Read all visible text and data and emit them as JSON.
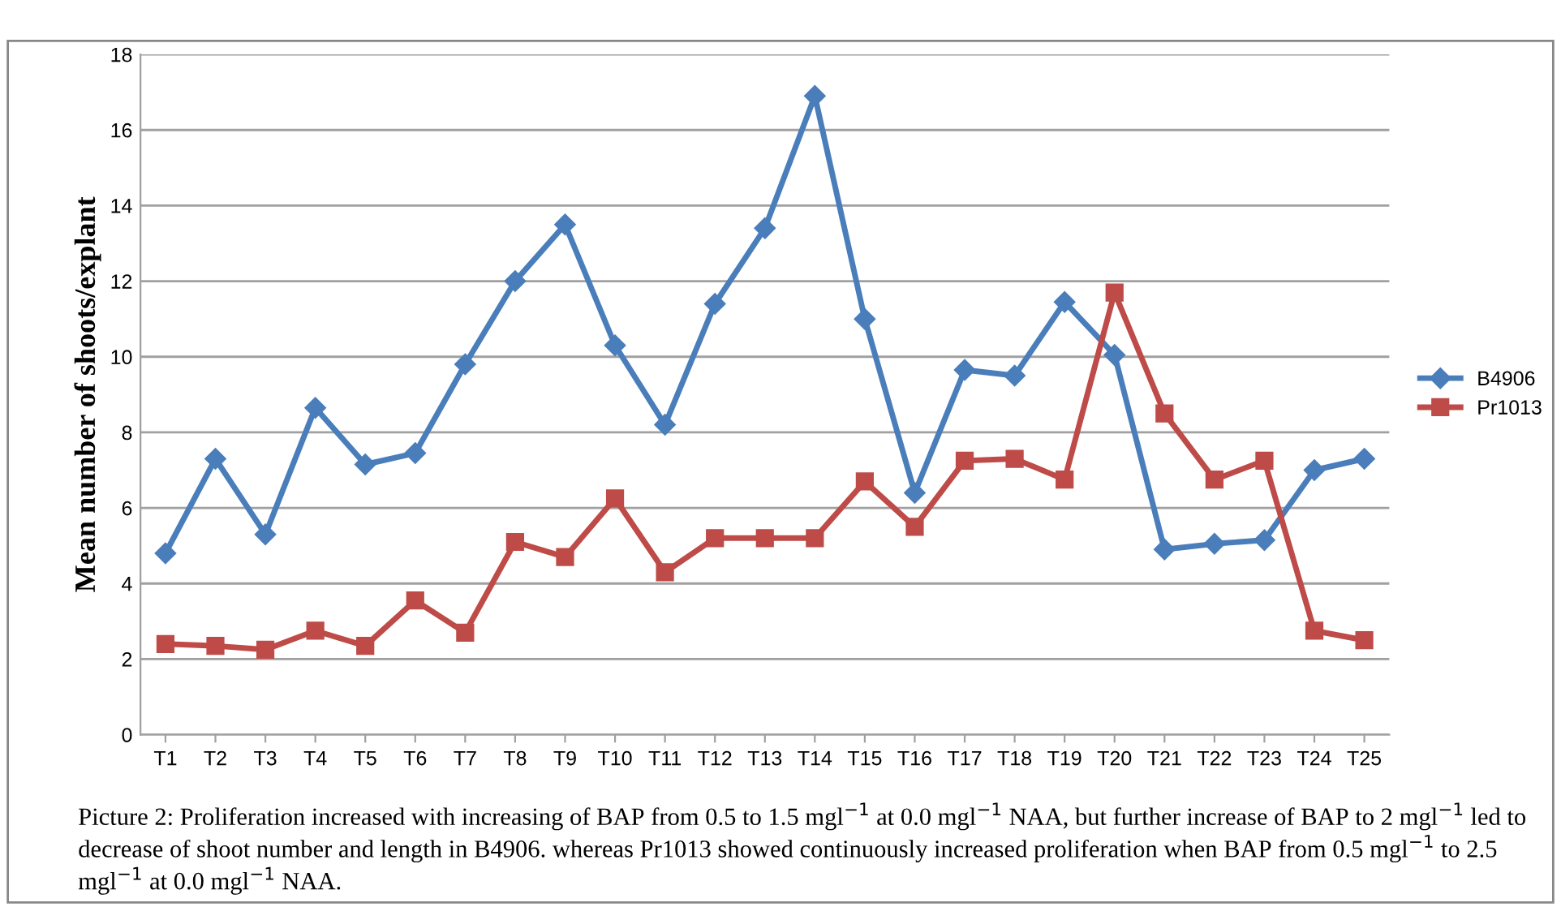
{
  "chart_data": {
    "type": "line",
    "ylabel": "Mean number of shoots/explant",
    "categories": [
      "T1",
      "T2",
      "T3",
      "T4",
      "T5",
      "T6",
      "T7",
      "T8",
      "T9",
      "T10",
      "T11",
      "T12",
      "T13",
      "T14",
      "T15",
      "T16",
      "T17",
      "T18",
      "T19",
      "T20",
      "T21",
      "T22",
      "T23",
      "T24",
      "T25"
    ],
    "series": [
      {
        "name": "B4906",
        "color": "#4a7ebb",
        "marker": "diamond",
        "values": [
          4.8,
          7.3,
          5.3,
          8.65,
          7.15,
          7.45,
          9.8,
          12.0,
          13.5,
          10.3,
          8.2,
          11.4,
          13.4,
          16.9,
          11.0,
          6.4,
          9.65,
          9.5,
          11.45,
          10.05,
          4.9,
          5.05,
          5.15,
          7.0,
          7.3
        ]
      },
      {
        "name": "Pr1013",
        "color": "#be4b48",
        "marker": "square",
        "values": [
          2.4,
          2.35,
          2.25,
          2.75,
          2.35,
          3.55,
          2.7,
          5.1,
          4.7,
          6.25,
          4.3,
          5.2,
          5.2,
          5.2,
          6.7,
          5.5,
          7.25,
          7.3,
          6.75,
          11.7,
          8.5,
          6.75,
          7.25,
          2.75,
          2.5
        ]
      }
    ],
    "ylim": [
      0,
      18
    ],
    "yticks": [
      0,
      2,
      4,
      6,
      8,
      10,
      12,
      14,
      16,
      18
    ],
    "grid": "y",
    "legend": "right",
    "annotations": [
      "Picture 2: Proliferation increased with increasing of BAP from 0.5 to 1.5 mgl$^{−1}$ at 0.0 mgl$^{−1}$ NAA, but further increase of BAP to 2 mgl$^{−1}$ led to decrease of shoot number and length in B4906. whereas Pr1013 showed continuously increased proliferation when BAP from 0.5 mgl$^{−1}$ to 2.5 mgl$^{−1}$ at 0.0 mgl$^{−1}$ NAA."
    ]
  }
}
